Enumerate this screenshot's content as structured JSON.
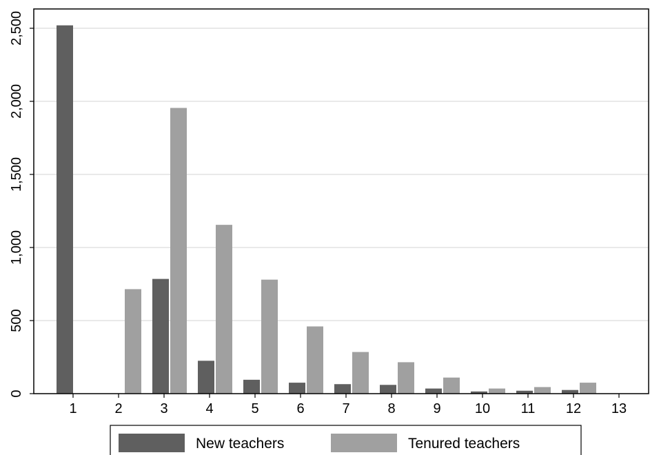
{
  "chart_data": {
    "type": "bar",
    "title": "",
    "xlabel": "",
    "ylabel": "",
    "ylim": [
      0,
      2500
    ],
    "yticks": [
      0,
      500,
      1000,
      1500,
      2000,
      2500
    ],
    "ytick_labels": [
      "0",
      "500",
      "1,000",
      "1,500",
      "2,000",
      "2,500"
    ],
    "categories": [
      "1",
      "2",
      "3",
      "4",
      "5",
      "6",
      "7",
      "8",
      "9",
      "10",
      "11",
      "12",
      "13"
    ],
    "grid": true,
    "legend_position": "bottom",
    "series": [
      {
        "name": "New teachers",
        "color": "#5f5f5f",
        "values": [
          2520,
          0,
          785,
          225,
          95,
          75,
          65,
          60,
          35,
          15,
          20,
          25,
          0
        ]
      },
      {
        "name": "Tenured teachers",
        "color": "#a0a0a0",
        "values": [
          0,
          715,
          1955,
          1155,
          780,
          460,
          285,
          215,
          110,
          35,
          45,
          75,
          0
        ]
      }
    ]
  }
}
